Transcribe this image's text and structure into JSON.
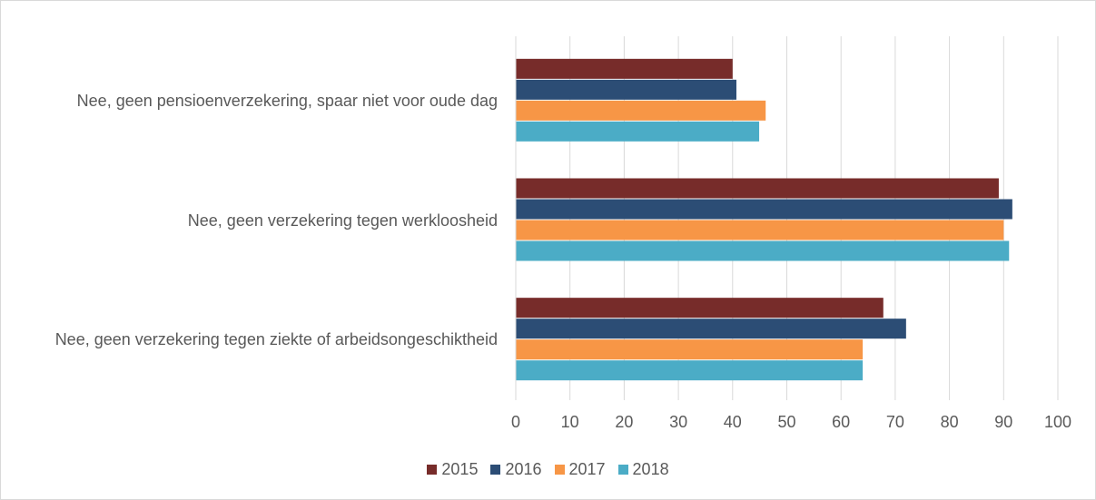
{
  "chart_data": {
    "type": "barh",
    "categories": [
      "Nee, geen pensioenverzekering, spaar niet voor oude dag",
      "Nee, geen verzekering tegen werkloosheid",
      "Nee, geen verzekering tegen ziekte of arbeidsongeschiktheid"
    ],
    "series": [
      {
        "name": "2015",
        "color": "#772c2a",
        "values": [
          40.0,
          89.1,
          67.8
        ]
      },
      {
        "name": "2016",
        "color": "#2c4d75",
        "values": [
          40.7,
          91.6,
          72.0
        ]
      },
      {
        "name": "2017",
        "color": "#f79646",
        "values": [
          46.1,
          90.0,
          64.0
        ]
      },
      {
        "name": "2018",
        "color": "#4bacc6",
        "values": [
          44.9,
          91.0,
          64.0
        ]
      }
    ],
    "xlim": [
      0,
      100
    ],
    "xticks": [
      0,
      10,
      20,
      30,
      40,
      50,
      60,
      70,
      80,
      90,
      100
    ],
    "grid": true,
    "legend": "bottom"
  }
}
